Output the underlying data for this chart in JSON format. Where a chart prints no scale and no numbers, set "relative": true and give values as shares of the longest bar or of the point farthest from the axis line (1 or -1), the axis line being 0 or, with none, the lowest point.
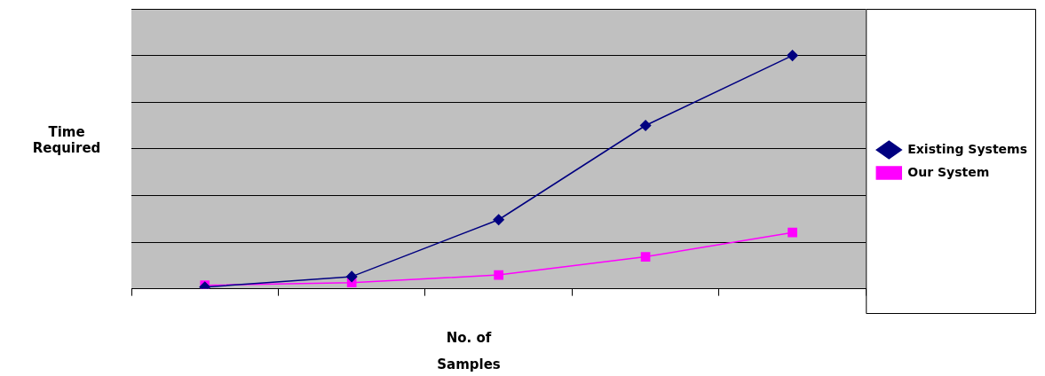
{
  "chart_data": {
    "type": "line",
    "xlabel": "No. of Samples",
    "ylabel": "Time Required",
    "categories": [
      null,
      null,
      null,
      null,
      null
    ],
    "relative": true,
    "grid": "y",
    "legend": "right",
    "series": [
      {
        "name": "Existing Systems",
        "color": "#000080",
        "marker": "diamond",
        "values": [
          0.007,
          0.052,
          0.296,
          0.7,
          1
        ]
      },
      {
        "name": "Our System",
        "color": "#ff00ff",
        "marker": "square",
        "values": [
          0.015,
          0.026,
          0.059,
          0.137,
          0.241
        ]
      }
    ]
  }
}
